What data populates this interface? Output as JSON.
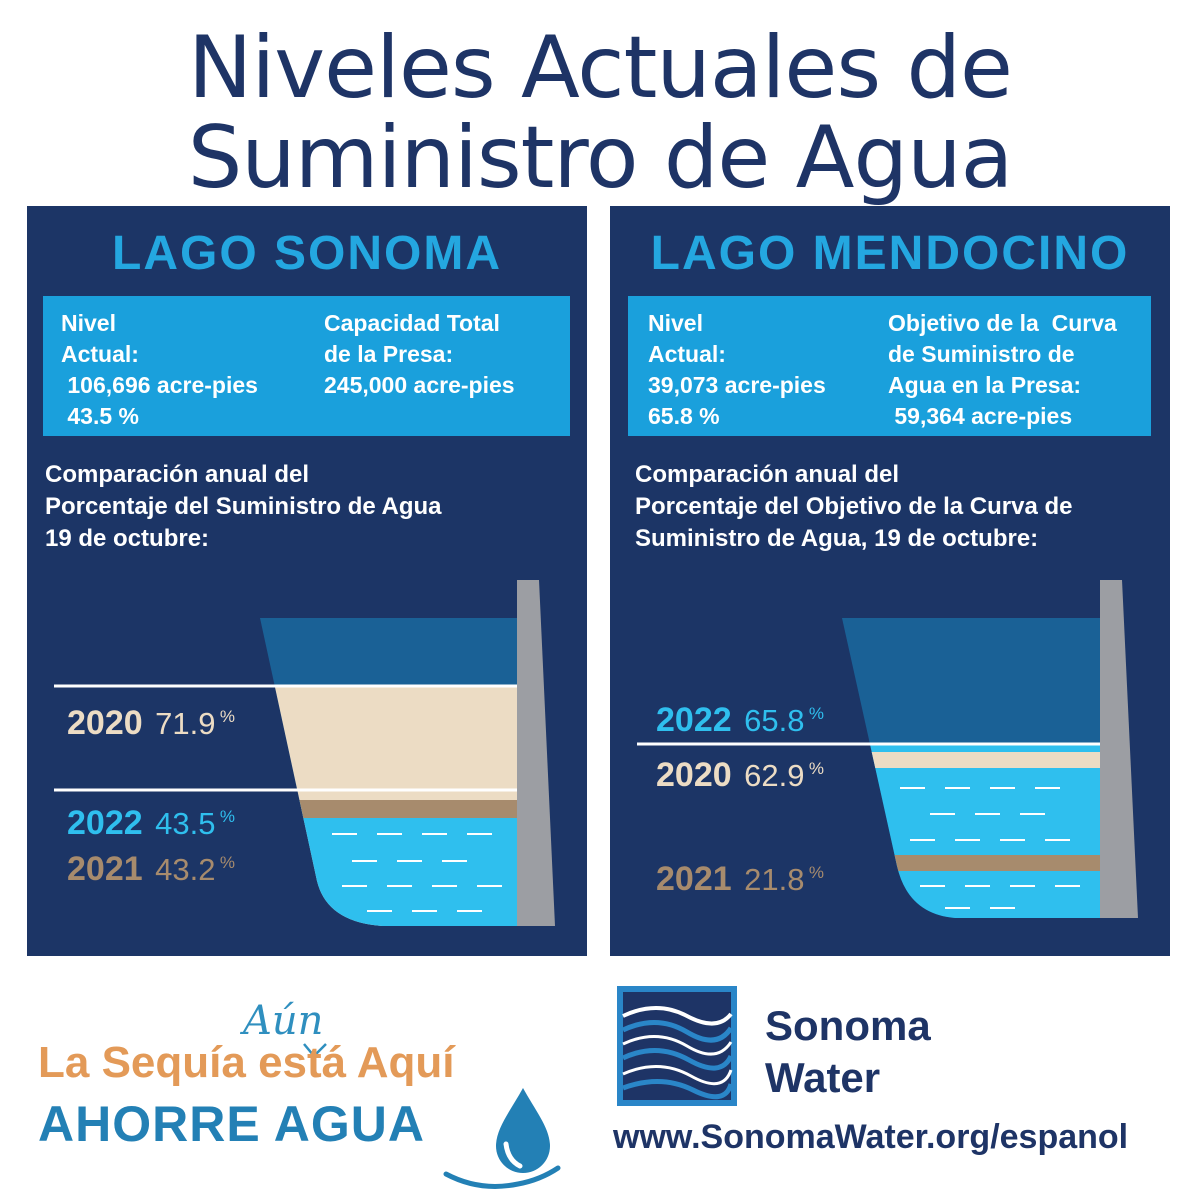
{
  "header": {
    "title_line1": "Niveles Actuales de",
    "title_line2": "Suministro de Agua"
  },
  "sonoma": {
    "title": "LAGO SONOMA",
    "info_left": [
      "Nivel",
      "Actual:",
      " 106,696 acre-pies",
      " 43.5 %"
    ],
    "info_right": [
      "Capacidad Total",
      "de la Presa:",
      "245,000 acre-pies"
    ],
    "comparison": [
      "Comparación anual del",
      "Porcentaje del Suministro de Agua",
      "19 de octubre:"
    ]
  },
  "mendocino": {
    "title": "LAGO MENDOCINO",
    "info_left": [
      "Nivel",
      "Actual:",
      "39,073 acre-pies",
      "65.8 %"
    ],
    "info_right": [
      "Objetivo de la  Curva",
      "de Suministro de",
      "Agua en la Presa:",
      " 59,364 acre-pies"
    ],
    "comparison": [
      "Comparación anual del",
      "Porcentaje del Objetivo de la Curva de",
      "Suministro de Agua, 19 de octubre:"
    ]
  },
  "chart_data": [
    {
      "type": "bar",
      "title": "LAGO SONOMA",
      "unit": "%",
      "categories": [
        "2020",
        "2022",
        "2021"
      ],
      "values": [
        71.9,
        43.5,
        43.2
      ],
      "labels": [
        "71.9",
        "43.5",
        "43.2"
      ],
      "colors": [
        "#ecdcc4",
        "#2fbfee",
        "#a78b6d"
      ]
    },
    {
      "type": "bar",
      "title": "LAGO MENDOCINO",
      "unit": "%",
      "categories": [
        "2022",
        "2020",
        "2021"
      ],
      "values": [
        65.8,
        62.9,
        21.8
      ],
      "labels": [
        "65.8",
        "62.9",
        "21.8"
      ],
      "colors": [
        "#2fbfee",
        "#ecdcc4",
        "#a78b6d"
      ]
    }
  ],
  "footer": {
    "aun": "Aún",
    "sequia": "La Sequía está Aquí",
    "ahorre": "AHORRE AGUA",
    "brand_line1": "Sonoma",
    "brand_line2": "Water",
    "url": "www.SonomaWater.org/espanol"
  },
  "colors": {
    "navy": "#1c3566",
    "accent_blue": "#24a7e0",
    "info_box": "#1aa0dc",
    "water": "#2fbfee",
    "tan": "#ecdcc4",
    "brown": "#a78b6d",
    "orange": "#e39a58"
  }
}
